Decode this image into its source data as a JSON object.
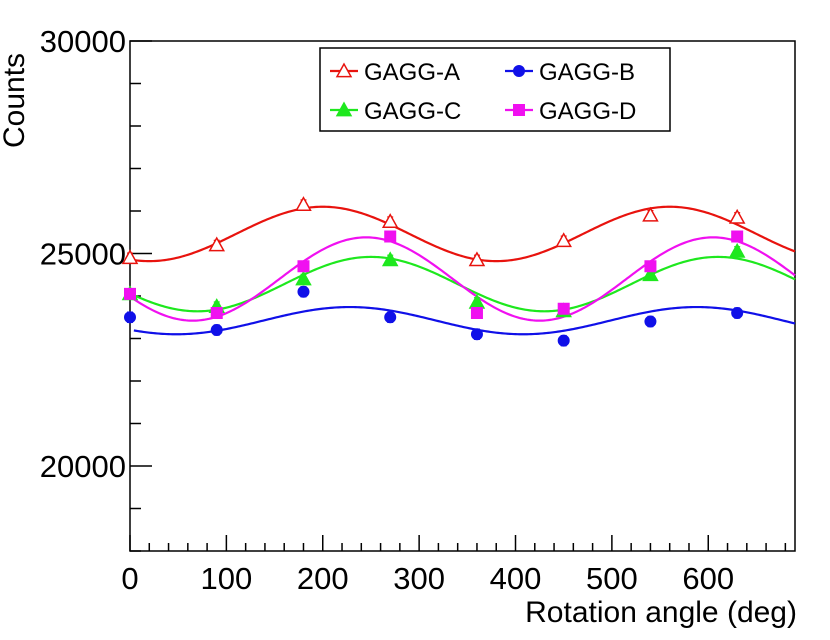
{
  "chart_data": {
    "type": "scatter",
    "title": "",
    "xlabel": "Rotation angle (deg)",
    "ylabel": "Counts",
    "xlim": [
      0,
      690
    ],
    "ylim": [
      18000,
      30000
    ],
    "xticks": [
      0,
      100,
      200,
      300,
      400,
      500,
      600
    ],
    "yticks": [
      20000,
      25000,
      30000
    ],
    "xtick_labels": [
      "0",
      "100",
      "200",
      "300",
      "400",
      "500",
      "600"
    ],
    "ytick_labels": [
      "20000",
      "25000",
      "30000"
    ],
    "legend_position": "top-right",
    "grid": false,
    "series": [
      {
        "name": "GAGG-A",
        "color": "#e8130e",
        "marker": "open-triangle",
        "x": [
          0,
          90,
          180,
          270,
          360,
          450,
          540,
          630
        ],
        "y": [
          24900,
          25200,
          26150,
          25750,
          24850,
          25300,
          25900,
          25850
        ],
        "err": [
          110,
          110,
          110,
          110,
          110,
          110,
          110,
          110
        ],
        "fit": {
          "mean": 25460,
          "amplitude": 640,
          "period": 360,
          "peak_x": 200
        }
      },
      {
        "name": "GAGG-B",
        "color": "#1010e8",
        "marker": "filled-circle",
        "x": [
          0,
          90,
          180,
          270,
          360,
          450,
          540,
          630
        ],
        "y": [
          23500,
          23200,
          24100,
          23500,
          23100,
          22950,
          23400,
          23600
        ],
        "err": [
          120,
          120,
          120,
          120,
          120,
          120,
          120,
          120
        ],
        "fit": {
          "mean": 23420,
          "amplitude": 320,
          "period": 360,
          "peak_x": 228
        }
      },
      {
        "name": "GAGG-C",
        "color": "#1ee81e",
        "marker": "filled-triangle",
        "x": [
          0,
          90,
          180,
          270,
          360,
          450,
          540,
          630
        ],
        "y": [
          24050,
          23750,
          24400,
          24850,
          23850,
          23650,
          24500,
          25050
        ],
        "err": [
          110,
          110,
          110,
          110,
          110,
          110,
          110,
          110
        ],
        "fit": {
          "mean": 24280,
          "amplitude": 640,
          "period": 360,
          "peak_x": 250
        }
      },
      {
        "name": "GAGG-D",
        "color": "#f010f0",
        "marker": "filled-square",
        "x": [
          0,
          90,
          180,
          270,
          360,
          450,
          540,
          630
        ],
        "y": [
          24050,
          23600,
          24700,
          25400,
          23600,
          23700,
          24700,
          25400
        ],
        "err": [
          110,
          110,
          110,
          110,
          110,
          110,
          110,
          110
        ],
        "fit": {
          "mean": 24400,
          "amplitude": 980,
          "period": 360,
          "peak_x": 245
        }
      }
    ]
  }
}
